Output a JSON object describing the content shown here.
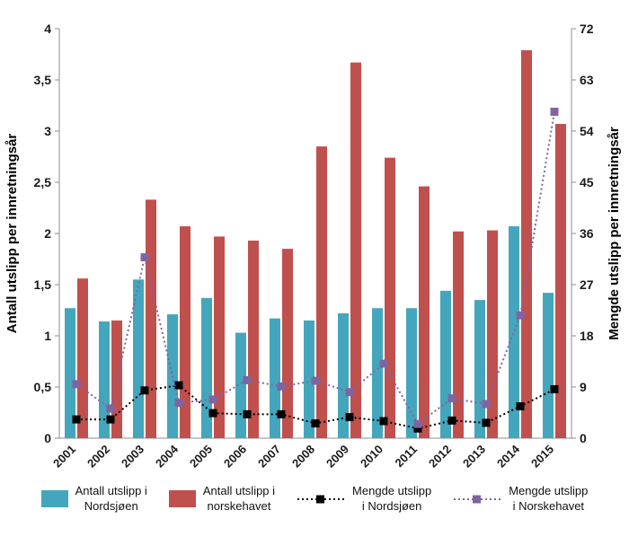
{
  "chart_data": {
    "type": "bar+line",
    "title": "",
    "grid": false,
    "legend_position": "bottom",
    "categories": [
      "2001",
      "2002",
      "2003",
      "2004",
      "2005",
      "2006",
      "2007",
      "2008",
      "2009",
      "2010",
      "2011",
      "2012",
      "2013",
      "2014",
      "2015"
    ],
    "series": [
      {
        "name": "Antall utslipp i Nordsjøen",
        "type": "bar",
        "axis": "left",
        "color": "#44a6bc",
        "values": [
          1.27,
          1.14,
          1.55,
          1.21,
          1.37,
          1.03,
          1.17,
          1.15,
          1.22,
          1.27,
          1.27,
          1.44,
          1.35,
          2.07,
          1.42
        ]
      },
      {
        "name": "Antall utslipp i norskehavet",
        "type": "bar",
        "axis": "left",
        "color": "#c0504d",
        "values": [
          1.56,
          1.15,
          2.33,
          2.07,
          1.97,
          1.93,
          1.85,
          2.85,
          3.67,
          2.74,
          2.46,
          2.02,
          2.03,
          3.79,
          3.07
        ]
      },
      {
        "name": "Mengde utslipp i Nordsjøen",
        "type": "line",
        "axis": "right",
        "color": "#000000",
        "marker": "square",
        "linestyle": "dotted",
        "values": [
          3.3,
          3.3,
          8.4,
          9.3,
          4.4,
          4.2,
          4.2,
          2.6,
          3.7,
          3.0,
          1.7,
          3.1,
          2.7,
          5.6,
          8.6
        ]
      },
      {
        "name": "Mengde utslipp i Norskehavet",
        "type": "line",
        "axis": "right",
        "color": "#8064a2",
        "marker": "square",
        "linestyle": "dotted",
        "values": [
          9.5,
          5.2,
          31.8,
          6.2,
          6.8,
          10.2,
          9.1,
          10.1,
          8.1,
          13.1,
          2.5,
          7.0,
          6.0,
          21.6,
          57.4
        ]
      }
    ],
    "left_axis": {
      "label": "Antall utslipp per innretningsår",
      "min": 0,
      "max": 4,
      "ticks": [
        "0",
        "0,5",
        "1",
        "1,5",
        "2",
        "2,5",
        "3",
        "3,5",
        "4"
      ]
    },
    "right_axis": {
      "label": "Mengde utslipp per innretningsår",
      "min": 0,
      "max": 72,
      "ticks": [
        "0",
        "9",
        "18",
        "27",
        "36",
        "45",
        "54",
        "63",
        "72"
      ]
    },
    "legend": [
      {
        "line1": "Antall utslipp i",
        "line2": "Nordsjøen",
        "swatch": "bar",
        "color": "#44a6bc"
      },
      {
        "line1": "Antall utslipp i",
        "line2": "norskehavet",
        "swatch": "bar",
        "color": "#c0504d"
      },
      {
        "line1": "Mengde utslipp",
        "line2": "i Nordsjøen",
        "swatch": "line",
        "color": "#000000"
      },
      {
        "line1": "Mengde utslipp",
        "line2": "i Norskehavet",
        "swatch": "line",
        "color": "#8064a2"
      }
    ]
  }
}
